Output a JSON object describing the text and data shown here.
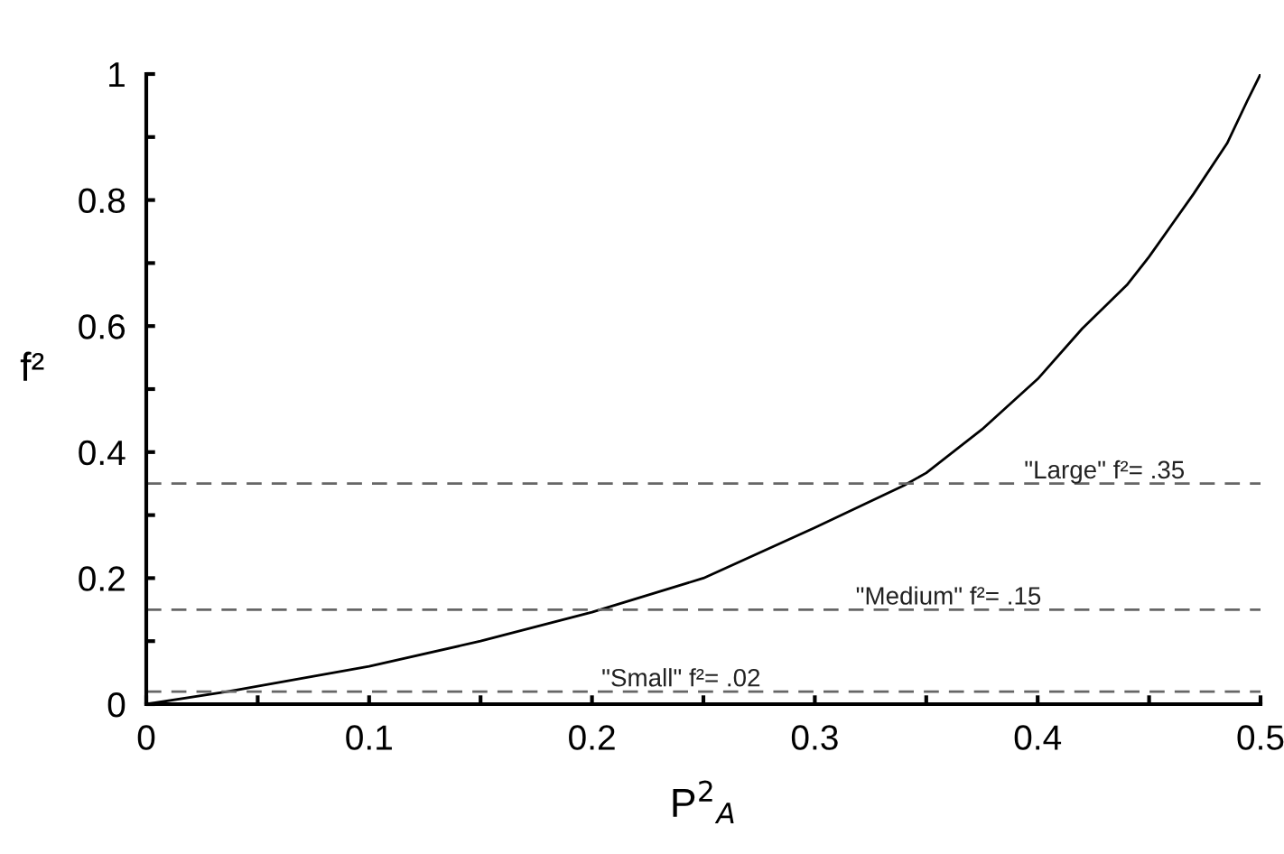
{
  "chart_data": {
    "type": "line",
    "xlabel": "P$^{2}$$_{A}$",
    "ylabel": "f²",
    "x": [
      0,
      0.035,
      0.1,
      0.15,
      0.2,
      0.25,
      0.3,
      0.34,
      0.35,
      0.375,
      0.4,
      0.42,
      0.44,
      0.45,
      0.46,
      0.47,
      0.485,
      0.494,
      0.5
    ],
    "series": [
      {
        "color": "#000000",
        "values": [
          0,
          0.019,
          0.06,
          0.1,
          0.146,
          0.2,
          0.28,
          0.347,
          0.367,
          0.436,
          0.516,
          0.596,
          0.665,
          0.71,
          0.76,
          0.81,
          0.89,
          0.957,
          1
        ]
      }
    ],
    "xlim": [
      0,
      0.5
    ],
    "ylim": [
      0,
      1
    ],
    "xticks": [
      0,
      {
        "value": 0.05,
        "label": null
      },
      0.1,
      {
        "value": 0.15,
        "label": null
      },
      0.2,
      {
        "value": 0.25,
        "label": null
      },
      0.3,
      {
        "value": 0.35,
        "label": null
      },
      0.4,
      {
        "value": 0.45,
        "label": null
      },
      0.5
    ],
    "yticks": [
      0,
      {
        "value": 0.1,
        "label": null
      },
      0.2,
      {
        "value": 0.3,
        "label": null
      },
      0.4,
      {
        "value": 0.5,
        "label": null
      },
      0.6,
      {
        "value": 0.7,
        "label": null
      },
      0.8,
      {
        "value": 0.9,
        "label": null
      },
      1
    ],
    "ref_lines": [
      {
        "axis": "y",
        "value": 0.35,
        "label": "\"Large\" f²= .35",
        "color": "#666666",
        "line_style": "dashed"
      },
      {
        "axis": "y",
        "value": 0.15,
        "label": "\"Medium\" f²= .15",
        "color": "#666666",
        "line_style": "dashed"
      },
      {
        "axis": "y",
        "value": 0.02,
        "label": "\"Small\" f²= .02",
        "color": "#666666",
        "line_style": "dashed"
      }
    ],
    "line_style": "solid",
    "marker": "none",
    "grid": false,
    "legend": false
  }
}
